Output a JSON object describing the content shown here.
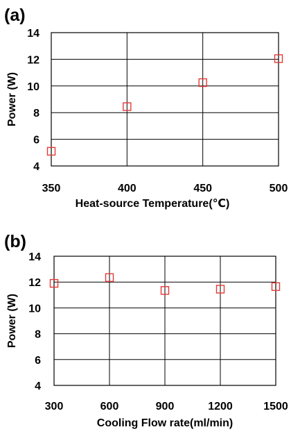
{
  "chart_data": [
    {
      "type": "scatter",
      "panel_label": "(a)",
      "xlabel": "Heat-source Temperature(℃)",
      "ylabel": "Power (W)",
      "x": [
        350,
        400,
        450,
        500
      ],
      "y": [
        5.1,
        8.45,
        10.25,
        12.05
      ],
      "xlim": [
        350,
        500
      ],
      "ylim": [
        4,
        14
      ],
      "xticks": [
        350,
        400,
        450,
        500
      ],
      "yticks": [
        4,
        6,
        8,
        10,
        12,
        14
      ],
      "grid": true,
      "marker": "open-square",
      "marker_color": "#e53935"
    },
    {
      "type": "scatter",
      "panel_label": "(b)",
      "xlabel": "Cooling Flow rate(ml/min)",
      "ylabel": "Power (W)",
      "x": [
        300,
        600,
        900,
        1200,
        1500
      ],
      "y": [
        11.9,
        12.35,
        11.35,
        11.45,
        11.65
      ],
      "xlim": [
        300,
        1500
      ],
      "ylim": [
        4,
        14
      ],
      "xticks": [
        300,
        600,
        900,
        1200,
        1500
      ],
      "yticks": [
        4,
        6,
        8,
        10,
        12,
        14
      ],
      "grid": true,
      "marker": "open-square",
      "marker_color": "#e53935"
    }
  ]
}
